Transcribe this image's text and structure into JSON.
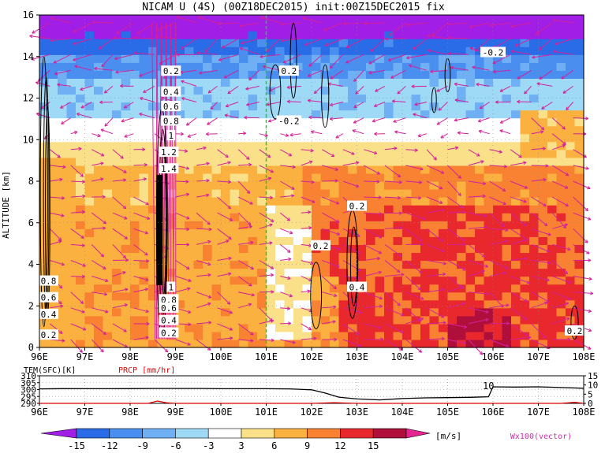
{
  "title": "NICAM U (4S) (00Z18DEC2015) init:00Z15DEC2015 fix",
  "chart_data": [
    {
      "type": "heatmap",
      "title": "NICAM U (4S) (00Z18DEC2015) init:00Z15DEC2015 fix",
      "ylabel": "ALTITUDE [km]",
      "x_ticks": [
        "96E",
        "97E",
        "98E",
        "99E",
        "100E",
        "101E",
        "102E",
        "103E",
        "104E",
        "105E",
        "106E",
        "107E",
        "108E"
      ],
      "y_ticks": [
        "0",
        "2",
        "4",
        "6",
        "8",
        "10",
        "12",
        "14",
        "16"
      ],
      "xlim": [
        96,
        108
      ],
      "ylim": [
        0,
        16
      ],
      "marker_line_x": 101,
      "contour_labels": [
        {
          "text": "0.2",
          "x": 98.9,
          "y": 13.3
        },
        {
          "text": "0.4",
          "x": 98.9,
          "y": 12.3
        },
        {
          "text": "0.6",
          "x": 98.9,
          "y": 11.6
        },
        {
          "text": "0.8",
          "x": 98.9,
          "y": 10.9
        },
        {
          "text": "1",
          "x": 98.9,
          "y": 10.2
        },
        {
          "text": "1.2",
          "x": 98.85,
          "y": 9.4
        },
        {
          "text": "1.4",
          "x": 98.85,
          "y": 8.6
        },
        {
          "text": "1",
          "x": 98.9,
          "y": 2.9
        },
        {
          "text": "0.8",
          "x": 98.85,
          "y": 2.3
        },
        {
          "text": "0.6",
          "x": 98.85,
          "y": 1.9
        },
        {
          "text": "0.4",
          "x": 98.85,
          "y": 1.3
        },
        {
          "text": "0.2",
          "x": 98.85,
          "y": 0.7
        },
        {
          "text": "0.8",
          "x": 96.2,
          "y": 3.2
        },
        {
          "text": "0.6",
          "x": 96.2,
          "y": 2.4
        },
        {
          "text": "0.4",
          "x": 96.2,
          "y": 1.6
        },
        {
          "text": "0.2",
          "x": 96.2,
          "y": 0.6
        },
        {
          "text": "-0.2",
          "x": 106.0,
          "y": 14.2
        },
        {
          "text": "0.2",
          "x": 101.5,
          "y": 13.3
        },
        {
          "text": "-0.2",
          "x": 101.5,
          "y": 10.9
        },
        {
          "text": "0.2",
          "x": 103.0,
          "y": 6.8
        },
        {
          "text": "0.2",
          "x": 102.2,
          "y": 4.9
        },
        {
          "text": "0.4",
          "x": 103.0,
          "y": 2.9
        },
        {
          "text": "0.2",
          "x": 107.8,
          "y": 0.8
        }
      ]
    },
    {
      "type": "line",
      "series": [
        {
          "name": "TEM(SFC)[K]",
          "color": "#000000",
          "x": [
            96,
            96.5,
            97,
            97.5,
            98,
            98.5,
            99,
            99.5,
            100,
            100.5,
            101,
            101.5,
            102,
            102.3,
            102.6,
            103,
            103.5,
            104,
            104.5,
            105,
            105.5,
            105.9,
            106,
            106.5,
            107,
            107.5,
            108
          ],
          "y": [
            300.5,
            300.7,
            300.6,
            300.6,
            300.7,
            300.8,
            300.8,
            300.8,
            300.6,
            300.6,
            300.6,
            300.5,
            299.8,
            297.5,
            294.5,
            293.2,
            292.5,
            293.5,
            294.0,
            294.2,
            294.4,
            294.8,
            302.0,
            301.8,
            302.0,
            301.5,
            301.0
          ]
        },
        {
          "name": "PRCP [mm/hr]",
          "color": "#e00000",
          "x": [
            96,
            98.4,
            98.6,
            98.8,
            99,
            102,
            102.5,
            103,
            104,
            107.5,
            107.8,
            108
          ],
          "y": [
            0,
            0,
            1.3,
            0.3,
            0,
            0,
            0.4,
            0,
            0,
            0,
            0.6,
            0
          ]
        }
      ],
      "left_ticks": [
        "310",
        "305",
        "300",
        "295",
        "290"
      ],
      "right_ticks": [
        "15",
        "10",
        "5",
        "0"
      ],
      "x_ticks": [
        "96E",
        "97E",
        "98E",
        "99E",
        "100E",
        "101E",
        "102E",
        "103E",
        "104E",
        "105E",
        "106E",
        "107E",
        "108E"
      ],
      "annotation": "10",
      "left_ylim": [
        290,
        310
      ],
      "right_ylim": [
        0,
        15
      ]
    }
  ],
  "colorbar": {
    "labels": [
      "-15",
      "-12",
      "-9",
      "-6",
      "-3",
      "3",
      "6",
      "9",
      "12",
      "15"
    ],
    "unit": "[m/s]",
    "colors": [
      "#a01ee6",
      "#2a6ce8",
      "#4a8ef0",
      "#6fb0f4",
      "#9edaf6",
      "#ffffff",
      "#fbe08a",
      "#fbb13f",
      "#f88232",
      "#e8282d",
      "#b00f3c",
      "#e3258f"
    ]
  },
  "vector_label": "Wx100(vector)"
}
